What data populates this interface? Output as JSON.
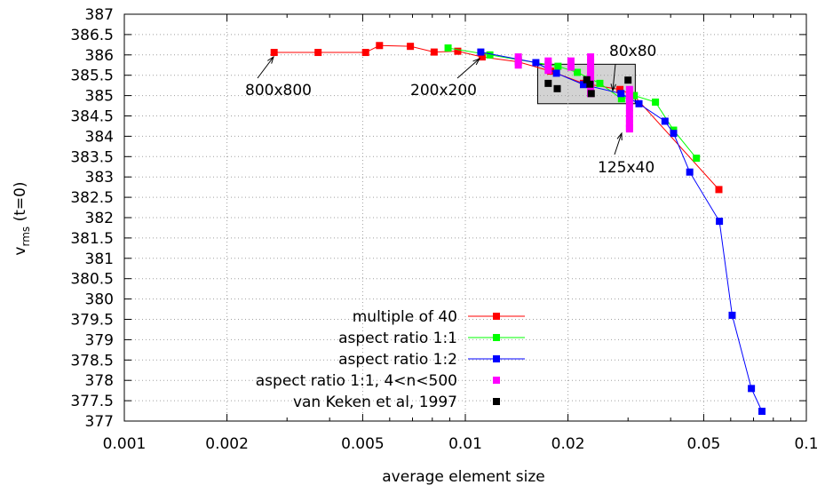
{
  "chart_data": {
    "type": "scatter",
    "title": "",
    "xlabel": "average element size",
    "ylabel": "v",
    "ylabel_sub": "rms",
    "ylabel_suffix": " (t=0)",
    "xscale": "log",
    "xlim": [
      0.001,
      0.1
    ],
    "ylim": [
      377,
      387
    ],
    "grid": true,
    "legend_position": "bottom-right",
    "x_ticks": [
      {
        "value": 0.001,
        "label": "0.001"
      },
      {
        "value": 0.002,
        "label": "0.002"
      },
      {
        "value": 0.005,
        "label": "0.005"
      },
      {
        "value": 0.01,
        "label": "0.01"
      },
      {
        "value": 0.02,
        "label": "0.02"
      },
      {
        "value": 0.05,
        "label": "0.05"
      },
      {
        "value": 0.1,
        "label": "0.1"
      }
    ],
    "y_ticks": [
      {
        "value": 377,
        "label": "377"
      },
      {
        "value": 377.5,
        "label": "377.5"
      },
      {
        "value": 378,
        "label": "378"
      },
      {
        "value": 378.5,
        "label": "378.5"
      },
      {
        "value": 379,
        "label": "379"
      },
      {
        "value": 379.5,
        "label": "379.5"
      },
      {
        "value": 380,
        "label": "380"
      },
      {
        "value": 380.5,
        "label": "380.5"
      },
      {
        "value": 381,
        "label": "381"
      },
      {
        "value": 381.5,
        "label": "381.5"
      },
      {
        "value": 382,
        "label": "382"
      },
      {
        "value": 382.5,
        "label": "382.5"
      },
      {
        "value": 383,
        "label": "383"
      },
      {
        "value": 383.5,
        "label": "383.5"
      },
      {
        "value": 384,
        "label": "384"
      },
      {
        "value": 384.5,
        "label": "384.5"
      },
      {
        "value": 385,
        "label": "385"
      },
      {
        "value": 385.5,
        "label": "385.5"
      },
      {
        "value": 386,
        "label": "386"
      },
      {
        "value": 386.5,
        "label": "386.5"
      },
      {
        "value": 387,
        "label": "387"
      }
    ],
    "highlight_box": {
      "x": [
        0.0163,
        0.0315
      ],
      "y": [
        384.8,
        385.77
      ],
      "color": "#d3d3d3"
    },
    "series": [
      {
        "name": "multiple of 40",
        "color": "#ff0000",
        "line": true,
        "x": [
          0.00275,
          0.0037,
          0.0051,
          0.0056,
          0.0069,
          0.0081,
          0.0095,
          0.0112,
          0.0143,
          0.0178,
          0.0222,
          0.0284,
          0.0312,
          0.0554
        ],
        "y": [
          386.06,
          386.06,
          386.06,
          386.23,
          386.21,
          386.07,
          386.09,
          385.95,
          385.83,
          385.6,
          385.3,
          385.15,
          385.0,
          382.69
        ]
      },
      {
        "name": "aspect ratio 1:1",
        "color": "#00ff00",
        "line": true,
        "x": [
          0.0089,
          0.0118,
          0.0143,
          0.0187,
          0.0213,
          0.0248,
          0.0287,
          0.0313,
          0.0361,
          0.0408,
          0.0476
        ],
        "y": [
          386.17,
          386.0,
          385.88,
          385.72,
          385.57,
          385.3,
          384.92,
          385.0,
          384.84,
          384.15,
          383.46
        ]
      },
      {
        "name": "aspect ratio 1:2",
        "color": "#0000ff",
        "line": true,
        "x": [
          0.0111,
          0.0161,
          0.0185,
          0.0222,
          0.0286,
          0.0323,
          0.0385,
          0.0408,
          0.0455,
          0.0556,
          0.0606,
          0.069,
          0.0741
        ],
        "y": [
          386.07,
          385.81,
          385.55,
          385.27,
          385.05,
          384.8,
          384.37,
          384.07,
          383.12,
          381.91,
          379.6,
          377.8,
          377.24
        ]
      },
      {
        "name": "aspect ratio 1:1, 4<n<500",
        "color": "#ff00ff",
        "line": false,
        "x": [
          0.0143,
          0.0143,
          0.0143,
          0.0175,
          0.0175,
          0.0175,
          0.0204,
          0.0204,
          0.0233,
          0.0233,
          0.0233,
          0.0233,
          0.0233,
          0.0233,
          0.0233,
          0.0303,
          0.0303,
          0.0303,
          0.0303,
          0.0303,
          0.0303,
          0.0303,
          0.0303,
          0.0303
        ],
        "y": [
          385.95,
          385.85,
          385.75,
          385.85,
          385.75,
          385.62,
          385.85,
          385.7,
          385.95,
          385.8,
          385.65,
          385.5,
          385.35,
          385.2,
          385.05,
          385.15,
          385.0,
          384.85,
          384.7,
          384.55,
          384.42,
          384.32,
          384.22,
          384.18
        ]
      },
      {
        "name": "van Keken et al, 1997",
        "color": "#000000",
        "line": false,
        "x": [
          0.0175,
          0.0186,
          0.0227,
          0.0232,
          0.0234,
          0.03
        ],
        "y": [
          385.3,
          385.17,
          385.39,
          385.28,
          385.05,
          385.38
        ]
      }
    ],
    "annotations": [
      {
        "text": "800x800",
        "point": [
          0.00275,
          386.06
        ]
      },
      {
        "text": "200x200",
        "point": [
          0.0111,
          385.93
        ]
      },
      {
        "text": "80x80",
        "point": [
          0.0284,
          385.02
        ]
      },
      {
        "text": "125x40",
        "point": [
          0.0303,
          384.2
        ]
      }
    ]
  }
}
